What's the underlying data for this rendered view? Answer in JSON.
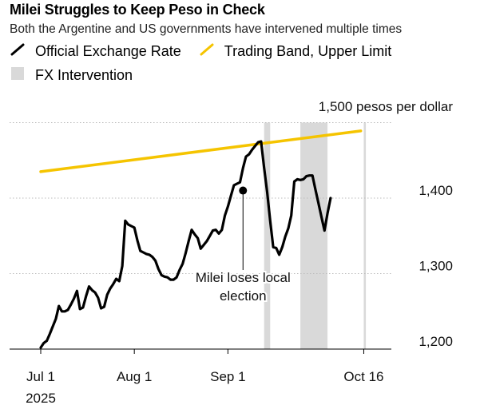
{
  "chart_data": {
    "type": "line",
    "title": "Milei Struggles to Keep Peso in Check",
    "subtitle": "Both the Argentine and US governments have intervened multiple times",
    "unit_label": "1,500 pesos per dollar",
    "legend": [
      "Official Exchange Rate",
      "Trading Band, Upper Limit",
      "FX Intervention"
    ],
    "colors": {
      "official": "#000000",
      "band": "#F5C400",
      "intervention": "#D9D9D9"
    },
    "y_ticks": [
      {
        "value": 1200,
        "label": "1,200"
      },
      {
        "value": 1300,
        "label": "1,300"
      },
      {
        "value": 1400,
        "label": "1,400"
      },
      {
        "value": 1500,
        "label": "1,500"
      }
    ],
    "x_ticks": [
      {
        "day": 0,
        "label": "Jul 1",
        "sublabel": "2025"
      },
      {
        "day": 31,
        "label": "Aug 1",
        "sublabel": ""
      },
      {
        "day": 62,
        "label": "Sep 1",
        "sublabel": ""
      },
      {
        "day": 107,
        "label": "Oct 16",
        "sublabel": ""
      }
    ],
    "x_day_origin": "Jul 1",
    "ylim": [
      1180,
      1505
    ],
    "xlim": [
      -5,
      110
    ],
    "series": [
      {
        "name": "Official Exchange Rate",
        "type": "line",
        "points": [
          [
            0,
            1202
          ],
          [
            1,
            1208
          ],
          [
            2,
            1211
          ],
          [
            3,
            1220
          ],
          [
            4,
            1230
          ],
          [
            5,
            1240
          ],
          [
            6,
            1257
          ],
          [
            7,
            1250
          ],
          [
            8,
            1250
          ],
          [
            9,
            1252
          ],
          [
            10,
            1259
          ],
          [
            11,
            1267
          ],
          [
            12,
            1277
          ],
          [
            13,
            1253
          ],
          [
            14,
            1255
          ],
          [
            15,
            1270
          ],
          [
            16,
            1283
          ],
          [
            17,
            1278
          ],
          [
            18,
            1275
          ],
          [
            19,
            1268
          ],
          [
            20,
            1254
          ],
          [
            21,
            1256
          ],
          [
            22,
            1272
          ],
          [
            23,
            1280
          ],
          [
            24,
            1286
          ],
          [
            25,
            1293
          ],
          [
            26,
            1290
          ],
          [
            27,
            1310
          ],
          [
            28,
            1370
          ],
          [
            29,
            1365
          ],
          [
            30,
            1363
          ],
          [
            31,
            1361
          ],
          [
            32,
            1344
          ],
          [
            33,
            1330
          ],
          [
            34,
            1328
          ],
          [
            35,
            1326
          ],
          [
            36,
            1325
          ],
          [
            37,
            1322
          ],
          [
            38,
            1317
          ],
          [
            39,
            1306
          ],
          [
            40,
            1298
          ],
          [
            41,
            1296
          ],
          [
            42,
            1295
          ],
          [
            43,
            1292
          ],
          [
            44,
            1292
          ],
          [
            45,
            1295
          ],
          [
            46,
            1305
          ],
          [
            47,
            1313
          ],
          [
            48,
            1327
          ],
          [
            49,
            1343
          ],
          [
            50,
            1358
          ],
          [
            51,
            1352
          ],
          [
            52,
            1347
          ],
          [
            53,
            1333
          ],
          [
            54,
            1338
          ],
          [
            55,
            1343
          ],
          [
            56,
            1350
          ],
          [
            57,
            1357
          ],
          [
            58,
            1358
          ],
          [
            59,
            1353
          ],
          [
            60,
            1358
          ],
          [
            61,
            1377
          ],
          [
            62,
            1389
          ],
          [
            63,
            1403
          ],
          [
            64,
            1417
          ],
          [
            65,
            1419
          ],
          [
            66,
            1421
          ],
          [
            67,
            1440
          ],
          [
            68,
            1455
          ],
          [
            69,
            1458
          ],
          [
            70,
            1464
          ],
          [
            71,
            1469
          ],
          [
            72,
            1474
          ],
          [
            73,
            1475
          ],
          [
            74,
            1440
          ],
          [
            75,
            1408
          ],
          [
            76,
            1370
          ],
          [
            77,
            1335
          ],
          [
            78,
            1334
          ],
          [
            79,
            1325
          ],
          [
            80,
            1335
          ],
          [
            81,
            1349
          ],
          [
            82,
            1360
          ],
          [
            83,
            1377
          ],
          [
            84,
            1422
          ],
          [
            85,
            1425
          ],
          [
            86,
            1424
          ],
          [
            87,
            1425
          ],
          [
            88,
            1429
          ],
          [
            89,
            1430
          ],
          [
            90,
            1430
          ],
          [
            91,
            1411
          ],
          [
            92,
            1393
          ],
          [
            93,
            1375
          ],
          [
            94,
            1357
          ],
          [
            95,
            1380
          ],
          [
            96,
            1400
          ]
        ]
      },
      {
        "name": "Trading Band, Upper Limit",
        "type": "line",
        "points": [
          [
            0,
            1435
          ],
          [
            106,
            1489
          ]
        ]
      }
    ],
    "shaded_ranges": [
      [
        74,
        76
      ],
      [
        86,
        95
      ],
      [
        107,
        107.7
      ]
    ],
    "annotation": {
      "text_line1": "Milei loses local",
      "text_line2": "election",
      "day": 67,
      "value": 1410
    },
    "grid": true,
    "legend_position": "top-left"
  }
}
